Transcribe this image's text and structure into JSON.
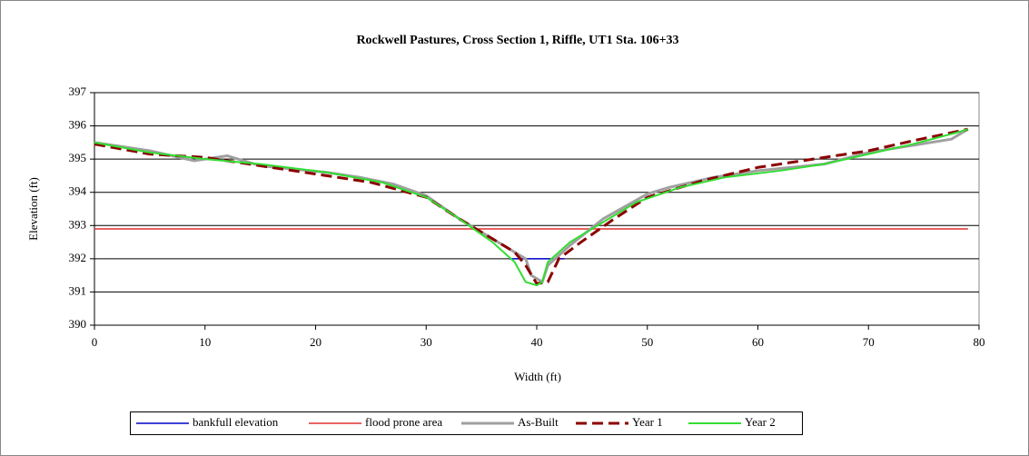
{
  "chart_data": {
    "type": "line",
    "title": "Rockwell Pastures, Cross Section 1, Riffle, UT1 Sta. 106+33",
    "x_label": "Width (ft)",
    "y_label": "Elevation (ft)",
    "xlim": [
      0,
      80
    ],
    "xticks": [
      0,
      10,
      20,
      30,
      40,
      50,
      60,
      70,
      80
    ],
    "ylim": [
      390,
      397
    ],
    "yticks": [
      390,
      391,
      392,
      393,
      394,
      395,
      396,
      397
    ],
    "grid": true,
    "legend": "bottom",
    "series": [
      {
        "name": "bankfull elevation",
        "color": "#0000cc",
        "width": 1.5,
        "x": [
          37.5,
          42.5
        ],
        "values": [
          392.0,
          392.0
        ]
      },
      {
        "name": "flood prone area",
        "color": "#e03030",
        "width": 1.5,
        "x": [
          0,
          79
        ],
        "values": [
          392.9,
          392.9
        ]
      },
      {
        "name": "As-Built",
        "color": "#a0a0a0",
        "width": 3,
        "x": [
          0,
          5,
          9,
          12,
          15,
          21,
          24,
          27,
          30,
          33,
          36,
          39,
          39.5,
          40.5,
          41,
          43,
          46,
          50,
          52,
          56,
          60,
          66,
          70,
          77.5,
          79
        ],
        "values": [
          395.5,
          395.25,
          394.95,
          395.1,
          394.8,
          394.6,
          394.45,
          394.25,
          393.9,
          393.2,
          392.6,
          392.0,
          391.5,
          391.3,
          391.8,
          392.4,
          393.2,
          393.95,
          394.15,
          394.45,
          394.65,
          394.85,
          395.2,
          395.6,
          395.9
        ]
      },
      {
        "name": "Year 1",
        "color": "#8b0000",
        "width": 3,
        "dashed": true,
        "x": [
          0,
          5,
          10,
          15,
          20,
          25,
          30,
          33,
          36,
          38,
          39,
          40,
          41,
          42,
          44,
          47,
          50,
          55,
          60,
          65,
          70,
          74,
          79
        ],
        "values": [
          395.45,
          395.15,
          395.05,
          394.8,
          394.55,
          394.3,
          393.85,
          393.2,
          392.6,
          392.2,
          391.8,
          391.25,
          391.3,
          392.0,
          392.5,
          393.2,
          393.85,
          394.35,
          394.75,
          395.0,
          395.25,
          395.55,
          395.9
        ]
      },
      {
        "name": "Year 2",
        "color": "#33dd33",
        "width": 2,
        "x": [
          0,
          5,
          10,
          15,
          21,
          26,
          30,
          33,
          36,
          38,
          39,
          40,
          40.5,
          41,
          43,
          46,
          49,
          53,
          57,
          62,
          66,
          70,
          74,
          78,
          79
        ],
        "values": [
          395.5,
          395.2,
          395.0,
          394.85,
          394.6,
          394.3,
          393.85,
          393.2,
          392.5,
          391.9,
          391.3,
          391.2,
          391.3,
          391.9,
          392.5,
          393.1,
          393.7,
          394.15,
          394.45,
          394.65,
          394.85,
          395.15,
          395.45,
          395.8,
          395.9
        ]
      }
    ]
  }
}
